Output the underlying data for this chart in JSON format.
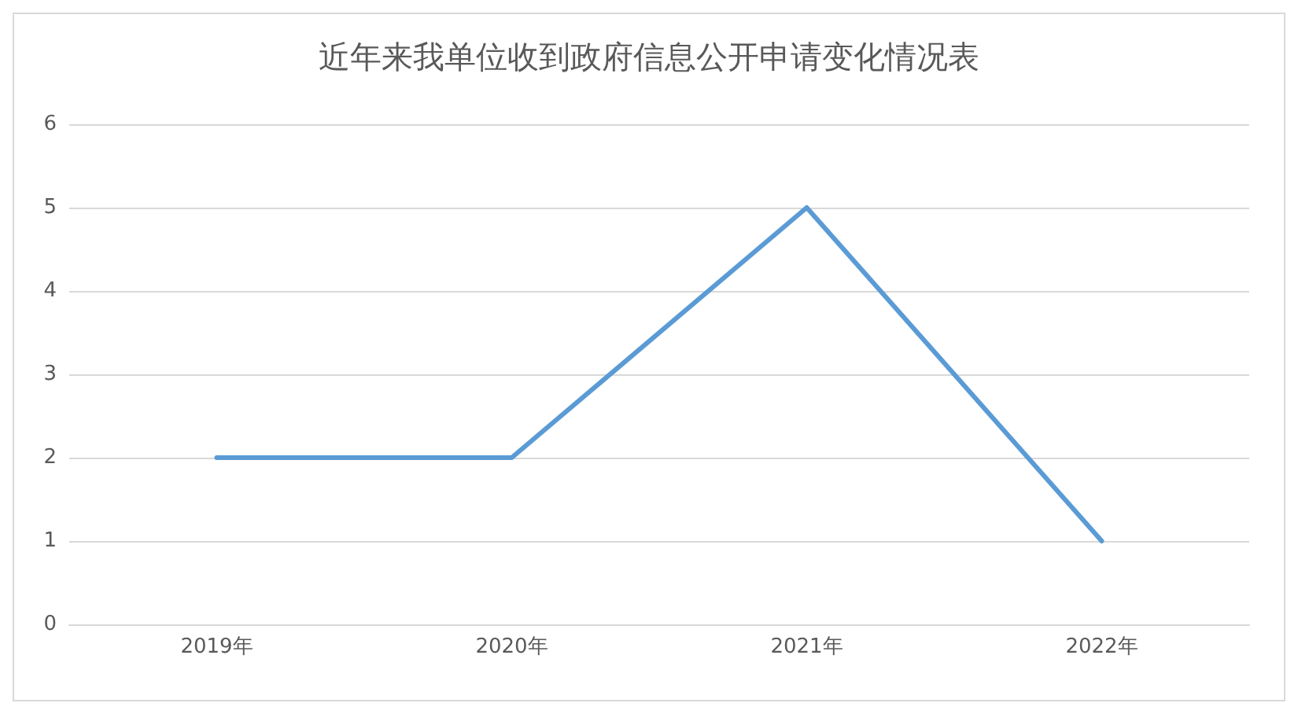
{
  "chart_data": {
    "type": "line",
    "title": "近年来我单位收到政府信息公开申请变化情况表",
    "categories": [
      "2019年",
      "2020年",
      "2021年",
      "2022年"
    ],
    "values": [
      2,
      2,
      5,
      1
    ],
    "color": "#5b9bd5",
    "ylim": [
      0,
      6
    ],
    "yticks": [
      0,
      1,
      2,
      3,
      4,
      5,
      6
    ],
    "grid": "y",
    "marker": "none",
    "line_style": "solid"
  }
}
